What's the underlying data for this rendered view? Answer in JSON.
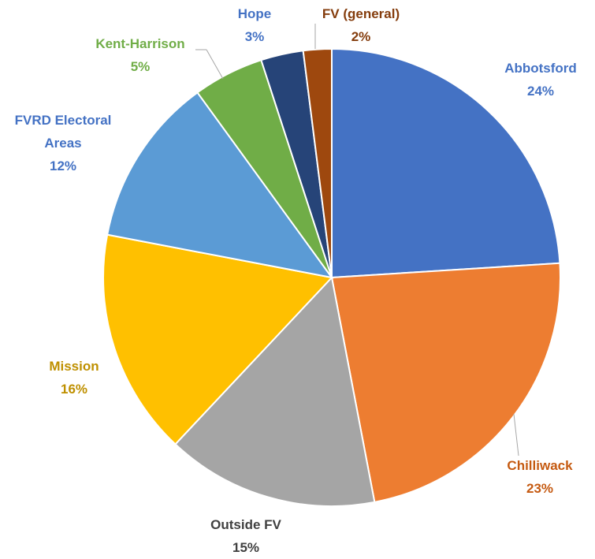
{
  "chart_data": {
    "type": "pie",
    "categories": [
      "Abbotsford",
      "Chilliwack",
      "Outside FV",
      "Mission",
      "FVRD Electoral Areas",
      "Kent-Harrison",
      "Hope",
      "FV (general)"
    ],
    "values": [
      24,
      23,
      15,
      16,
      12,
      5,
      3,
      2
    ],
    "value_labels": [
      "24%",
      "23%",
      "15%",
      "16%",
      "12%",
      "5%",
      "3%",
      "2%"
    ],
    "colors": [
      "#4472c4",
      "#ed7d31",
      "#a5a5a5",
      "#ffc000",
      "#5b9bd5",
      "#70ad47",
      "#264478",
      "#9e480e"
    ],
    "label_colors": [
      "#4472c4",
      "#c55a11",
      "#404040",
      "#bf9000",
      "#4472c4",
      "#70ad47",
      "#4472c4",
      "#843c0c"
    ]
  }
}
